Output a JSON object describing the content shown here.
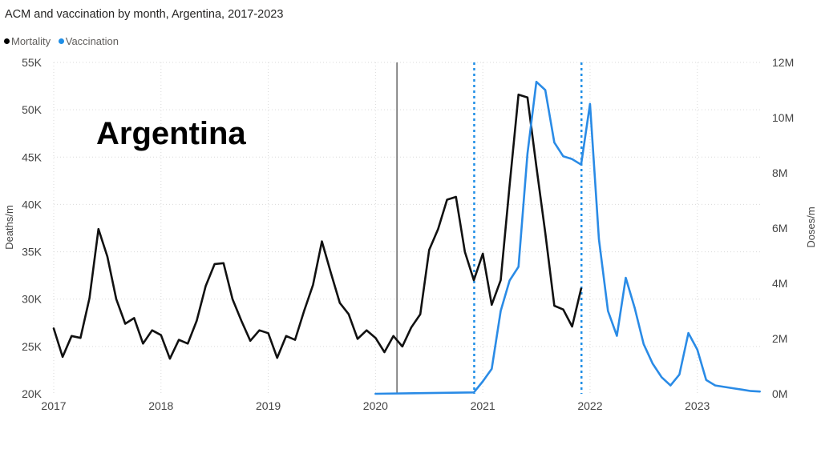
{
  "header": {
    "title": "ACM and vaccination by month, Argentina, 2017-2023",
    "legend": [
      {
        "label": "Mortality",
        "color": "#000000"
      },
      {
        "label": "Vaccination",
        "color": "#1f8ee6"
      }
    ]
  },
  "colors": {
    "mortality": "#111111",
    "vaccination": "#2a8be6",
    "grid": "#d9d9d9",
    "annotation_dotted": "#1f8ee6",
    "annotation_solid": "#666666"
  },
  "chart_data": {
    "type": "line",
    "title": "ACM and vaccination by month, Argentina, 2017-2023",
    "annotation_label": "Argentina",
    "xlabel": "",
    "ylabel": "Deaths/m",
    "y2label": "Doses/m",
    "xlim": [
      2017.0,
      2023.6
    ],
    "ylim": [
      20000,
      55000
    ],
    "y2lim": [
      0,
      12000000
    ],
    "x_ticks": [
      "2017",
      "2018",
      "2019",
      "2020",
      "2021",
      "2022",
      "2023"
    ],
    "y_ticks": [
      "20K",
      "25K",
      "30K",
      "35K",
      "40K",
      "45K",
      "50K",
      "55K"
    ],
    "y2_ticks": [
      "0M",
      "2M",
      "4M",
      "6M",
      "8M",
      "10M",
      "12M"
    ],
    "grid": true,
    "legend_position": "top-left",
    "vertical_markers": [
      {
        "x": 2020.2,
        "style": "solid"
      },
      {
        "x": 2020.92,
        "style": "dotted"
      },
      {
        "x": 2021.92,
        "style": "dotted"
      }
    ],
    "series": [
      {
        "name": "Mortality",
        "axis": "left",
        "x": [
          2017.0,
          2017.083,
          2017.167,
          2017.25,
          2017.333,
          2017.417,
          2017.5,
          2017.583,
          2017.667,
          2017.75,
          2017.833,
          2017.917,
          2018.0,
          2018.083,
          2018.167,
          2018.25,
          2018.333,
          2018.417,
          2018.5,
          2018.583,
          2018.667,
          2018.75,
          2018.833,
          2018.917,
          2019.0,
          2019.083,
          2019.167,
          2019.25,
          2019.333,
          2019.417,
          2019.5,
          2019.583,
          2019.667,
          2019.75,
          2019.833,
          2019.917,
          2020.0,
          2020.083,
          2020.167,
          2020.25,
          2020.333,
          2020.417,
          2020.5,
          2020.583,
          2020.667,
          2020.75,
          2020.833,
          2020.917,
          2021.0,
          2021.083,
          2021.167,
          2021.25,
          2021.333,
          2021.417,
          2021.5,
          2021.583,
          2021.667,
          2021.75,
          2021.833,
          2021.917
        ],
        "y": [
          26900,
          23900,
          26100,
          25900,
          30100,
          37400,
          34500,
          30000,
          27400,
          28000,
          25300,
          26700,
          26200,
          23700,
          25700,
          25300,
          27700,
          31400,
          33700,
          33800,
          30000,
          27700,
          25600,
          26700,
          26400,
          23800,
          26100,
          25700,
          28700,
          31500,
          36100,
          32800,
          29600,
          28400,
          25800,
          26700,
          25900,
          24400,
          26100,
          25000,
          27000,
          28400,
          35200,
          37400,
          40500,
          40800,
          35000,
          32000,
          34800,
          29400,
          32000,
          42000,
          51600,
          51300,
          44000,
          37000,
          29300,
          28900,
          27100,
          31100
        ]
      },
      {
        "name": "Vaccination",
        "axis": "right",
        "x": [
          2020.0,
          2020.917,
          2021.0,
          2021.083,
          2021.167,
          2021.25,
          2021.333,
          2021.417,
          2021.5,
          2021.583,
          2021.667,
          2021.75,
          2021.833,
          2021.917,
          2022.0,
          2022.083,
          2022.167,
          2022.25,
          2022.333,
          2022.417,
          2022.5,
          2022.583,
          2022.667,
          2022.75,
          2022.833,
          2022.917,
          2023.0,
          2023.083,
          2023.167,
          2023.25,
          2023.333,
          2023.417,
          2023.5,
          2023.583
        ],
        "y": [
          0,
          50000,
          450000,
          900000,
          3000000,
          4100000,
          4600000,
          8700000,
          11300000,
          11000000,
          9100000,
          8600000,
          8500000,
          8300000,
          10500000,
          5600000,
          3000000,
          2100000,
          4200000,
          3100000,
          1800000,
          1100000,
          600000,
          300000,
          700000,
          2200000,
          1600000,
          500000,
          300000,
          250000,
          200000,
          150000,
          100000,
          80000
        ]
      }
    ]
  }
}
